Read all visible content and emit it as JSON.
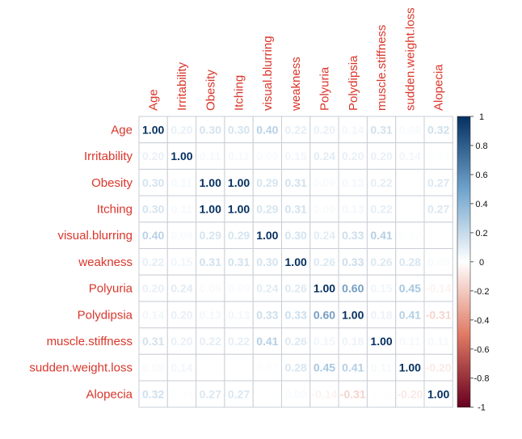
{
  "chart_data": {
    "type": "heatmap",
    "variables": [
      "Age",
      "Irritability",
      "Obesity",
      "Itching",
      "visual.blurring",
      "weakness",
      "Polyuria",
      "Polydipsia",
      "muscle.stiffness",
      "sudden.weight.loss",
      "Alopecia"
    ],
    "matrix": [
      [
        1.0,
        0.2,
        0.3,
        0.3,
        0.4,
        0.22,
        0.2,
        0.14,
        0.31,
        0.09,
        0.32
      ],
      [
        0.2,
        1.0,
        0.11,
        0.11,
        0.09,
        0.15,
        0.24,
        0.2,
        0.2,
        0.14,
        0.04
      ],
      [
        0.3,
        0.11,
        1.0,
        1.0,
        0.29,
        0.31,
        0.09,
        0.13,
        0.22,
        null,
        0.27
      ],
      [
        0.3,
        0.11,
        1.0,
        1.0,
        0.29,
        0.31,
        0.09,
        0.13,
        0.22,
        null,
        0.27
      ],
      [
        0.4,
        0.09,
        0.29,
        0.29,
        1.0,
        0.3,
        0.24,
        0.33,
        0.41,
        0.07,
        null
      ],
      [
        0.22,
        0.15,
        0.31,
        0.31,
        0.3,
        1.0,
        0.26,
        0.33,
        0.26,
        0.28,
        0.09
      ],
      [
        0.2,
        0.24,
        0.09,
        0.09,
        0.24,
        0.26,
        1.0,
        0.6,
        0.15,
        0.45,
        -0.14
      ],
      [
        0.14,
        0.2,
        0.13,
        0.13,
        0.33,
        0.33,
        0.6,
        1.0,
        0.18,
        0.41,
        -0.31
      ],
      [
        0.31,
        0.2,
        0.22,
        0.22,
        0.41,
        0.26,
        0.15,
        0.18,
        1.0,
        0.11,
        0.11
      ],
      [
        0.09,
        0.14,
        null,
        null,
        0.07,
        0.28,
        0.45,
        0.41,
        0.11,
        1.0,
        -0.2
      ],
      [
        0.32,
        0.04,
        0.27,
        0.27,
        0.03,
        0.09,
        -0.14,
        -0.31,
        0.05,
        -0.2,
        1.0
      ]
    ],
    "colorbar": {
      "ticks": [
        "1",
        "0.8",
        "0.6",
        "0.4",
        "0.2",
        "0",
        "-0.2",
        "-0.4",
        "-0.6",
        "-0.8",
        "-1"
      ],
      "range": [
        -1,
        1
      ],
      "colors": {
        "negative": "#67001f",
        "mid_negative": "#e07a64",
        "neutral": "#ffffff",
        "mid_positive": "#6fa3cc",
        "positive": "#053061"
      }
    },
    "label_color": "#d9362b",
    "grid_color": "#c9ced6"
  }
}
